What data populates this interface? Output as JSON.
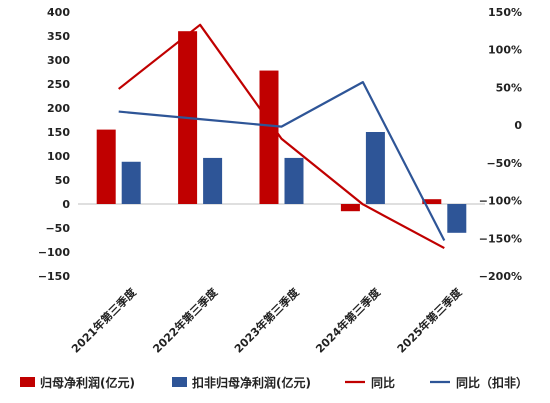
{
  "chart_data": {
    "type": "bar",
    "categories": [
      "2021年第三季度",
      "2022年第三季度",
      "2023年第三季度",
      "2024年第三季度",
      "2025年第三季度"
    ],
    "series": [
      {
        "name": "归母净利润(亿元)",
        "type": "bar",
        "axis": "left",
        "color": "#c00000",
        "values": [
          155,
          360,
          278,
          -15,
          10
        ]
      },
      {
        "name": "扣非归母净利润(亿元)",
        "type": "bar",
        "axis": "left",
        "color": "#2e5597",
        "values": [
          88,
          96,
          96,
          150,
          -60
        ]
      },
      {
        "name": "同比",
        "type": "line",
        "axis": "right",
        "color": "#c00000",
        "values": [
          0.48,
          1.33,
          -0.18,
          -1.05,
          -1.63
        ]
      },
      {
        "name": "同比（扣非）",
        "type": "line",
        "axis": "right",
        "color": "#2e5597",
        "values": [
          0.18,
          0.08,
          -0.02,
          0.57,
          -1.53
        ]
      }
    ],
    "left_axis": {
      "min": -150,
      "max": 400,
      "step": 50,
      "ticks": [
        "400",
        "350",
        "300",
        "250",
        "200",
        "150",
        "100",
        "50",
        "0",
        "−50",
        "−100",
        "−150"
      ]
    },
    "right_axis": {
      "min": -2.0,
      "max": 1.5,
      "step": 0.5,
      "ticks": [
        "150%",
        "100%",
        "50%",
        "0",
        "−50%",
        "−100%",
        "−150%",
        "−200%"
      ]
    },
    "grid": false,
    "legend_position": "bottom"
  }
}
